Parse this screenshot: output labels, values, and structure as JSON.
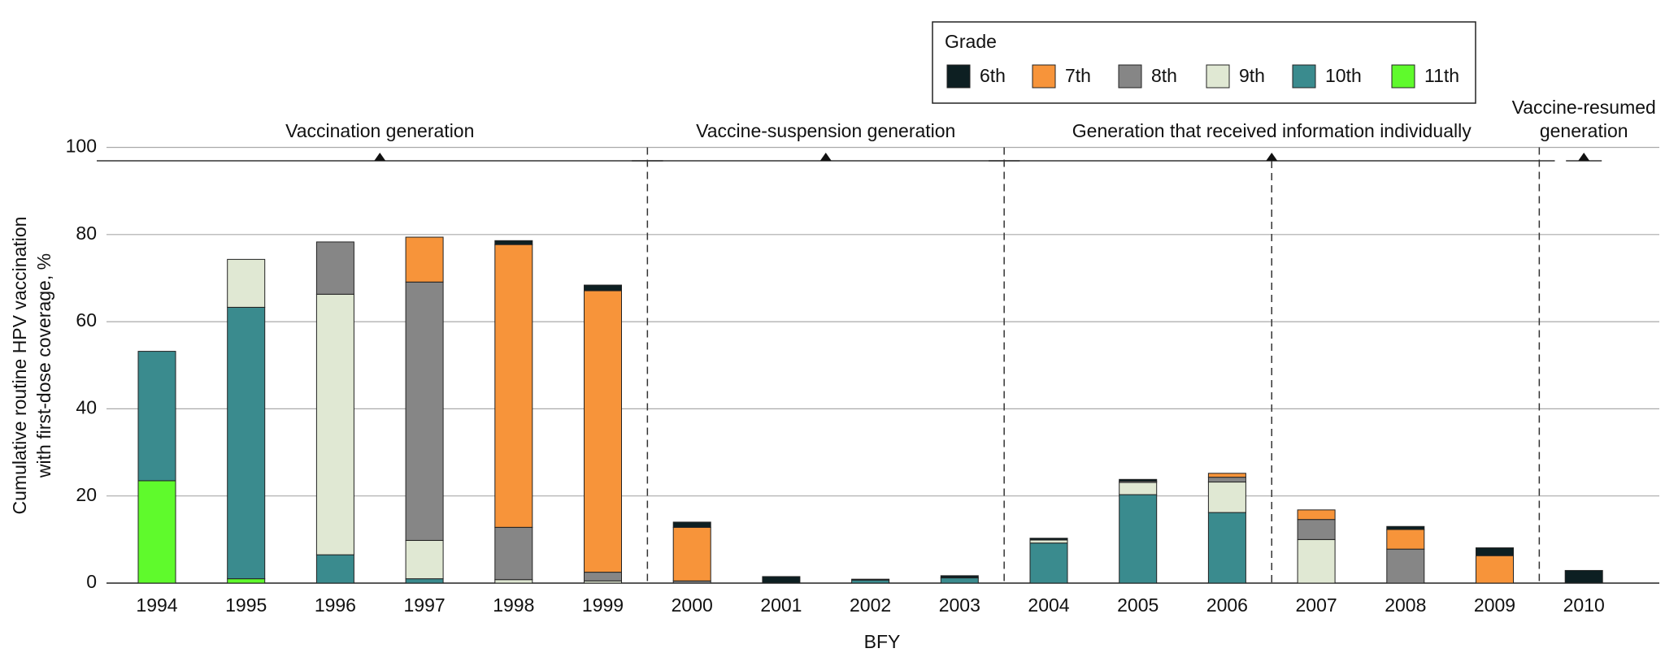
{
  "chart_data": {
    "type": "stacked_bar",
    "xlabel": "BFY",
    "ylabel": [
      "Cumulative routine HPV vaccination",
      "with first-dose coverage, %"
    ],
    "legend_title": "Grade",
    "annotations": [
      "Vaccination generation",
      "Vaccine-suspension generation",
      "Generation that received information individually",
      [
        "Vaccine-resumed",
        "generation"
      ]
    ],
    "categories": [
      "1994",
      "1995",
      "1996",
      "1997",
      "1998",
      "1999",
      "2000",
      "2001",
      "2002",
      "2003",
      "2004",
      "2005",
      "2006",
      "2007",
      "2008",
      "2009",
      "2010"
    ],
    "ylim": [
      0,
      100
    ],
    "yticks": [
      0,
      20,
      40,
      60,
      80,
      100
    ],
    "grid": true,
    "series": [
      {
        "name": "6th",
        "color": "#0d1f22",
        "values": [
          null,
          null,
          null,
          null,
          0.9,
          1.3,
          1.2,
          1.5,
          0.2,
          0.5,
          0.4,
          0.4,
          null,
          null,
          0.7,
          1.8,
          2.9
        ]
      },
      {
        "name": "7th",
        "color": "#f7943a",
        "values": [
          null,
          null,
          null,
          10.3,
          64.9,
          64.6,
          12.3,
          null,
          null,
          null,
          null,
          null,
          0.9,
          2.2,
          4.5,
          6.3,
          null
        ]
      },
      {
        "name": "8th",
        "color": "#868686",
        "values": [
          null,
          null,
          12.0,
          59.3,
          12.0,
          2.0,
          0.5,
          null,
          null,
          null,
          null,
          0.3,
          1.1,
          4.6,
          7.8,
          null,
          null
        ]
      },
      {
        "name": "9th",
        "color": "#e0e8d3",
        "values": [
          null,
          11.0,
          59.8,
          8.8,
          0.8,
          0.5,
          null,
          null,
          null,
          null,
          0.7,
          2.8,
          7.0,
          10.0,
          null,
          null,
          null
        ]
      },
      {
        "name": "10th",
        "color": "#3a8b8e",
        "values": [
          29.7,
          62.3,
          6.5,
          1.0,
          null,
          null,
          null,
          null,
          0.7,
          1.2,
          9.2,
          20.3,
          16.2,
          null,
          null,
          null,
          null
        ]
      },
      {
        "name": "11th",
        "color": "#5ffa2c",
        "values": [
          23.5,
          1.0,
          null,
          null,
          null,
          null,
          null,
          null,
          null,
          null,
          null,
          null,
          null,
          null,
          null,
          null,
          null
        ]
      }
    ]
  }
}
